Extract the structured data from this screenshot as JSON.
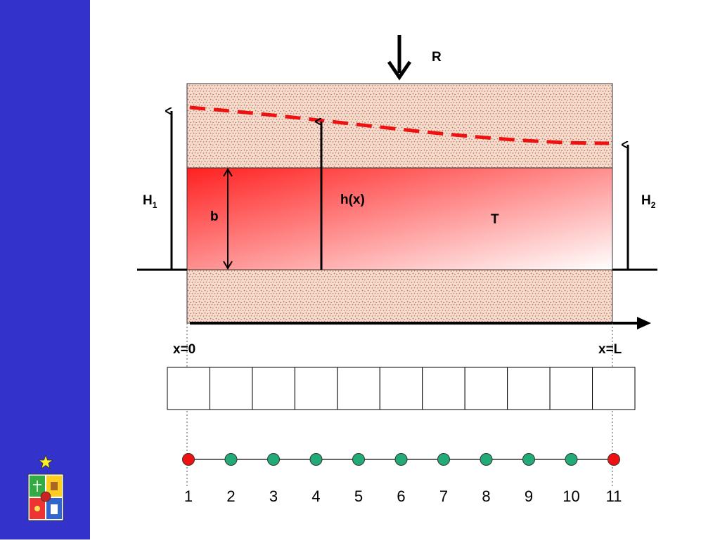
{
  "labels": {
    "recharge": "R",
    "head_left": "H",
    "head_left_sub": "1",
    "head_right": "H",
    "head_right_sub": "2",
    "head_x": "h(x)",
    "thickness": "b",
    "transmissivity": "T",
    "x_start": "x=0",
    "x_end": "x=L"
  },
  "grid": {
    "cells": 11
  },
  "nodes": [
    {
      "label": "1",
      "kind": "boundary"
    },
    {
      "label": "2",
      "kind": "interior"
    },
    {
      "label": "3",
      "kind": "interior"
    },
    {
      "label": "4",
      "kind": "interior"
    },
    {
      "label": "5",
      "kind": "interior"
    },
    {
      "label": "6",
      "kind": "interior"
    },
    {
      "label": "7",
      "kind": "interior"
    },
    {
      "label": "8",
      "kind": "interior"
    },
    {
      "label": "9",
      "kind": "interior"
    },
    {
      "label": "10",
      "kind": "interior"
    },
    {
      "label": "11",
      "kind": "boundary"
    }
  ],
  "colors": {
    "sidebar": "#3333cc",
    "boundary_node": "#ee1111",
    "interior_node": "#22aa77",
    "head_line": "#ee1111",
    "aquifer": "#ff2020"
  },
  "logo": {
    "icon": "university-crest-icon"
  }
}
